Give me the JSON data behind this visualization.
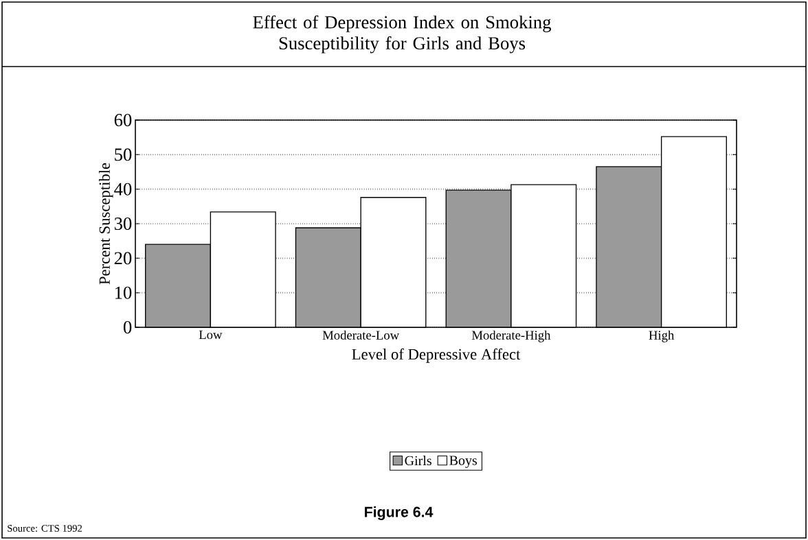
{
  "chart_data": {
    "type": "bar",
    "title": "Effect of Depression Index on Smoking Susceptibility for Girls and Boys",
    "xlabel": "Level of Depressive Affect",
    "ylabel": "Percent Susceptible",
    "categories": [
      "Low",
      "Moderate-Low",
      "Moderate-High",
      "High"
    ],
    "series": [
      {
        "name": "Girls",
        "color": "#9a9a9a",
        "values": [
          24,
          28.8,
          39.7,
          46.5
        ]
      },
      {
        "name": "Boys",
        "color": "#ffffff",
        "values": [
          33.4,
          37.6,
          41.3,
          55.2
        ]
      }
    ],
    "ylim": [
      0,
      60
    ],
    "yticks": [
      0,
      10,
      20,
      30,
      40,
      50,
      60
    ],
    "grid": "y",
    "legend": "bottom",
    "annotations": [
      "Figure 6.4",
      "Source: CTS 1992"
    ]
  }
}
